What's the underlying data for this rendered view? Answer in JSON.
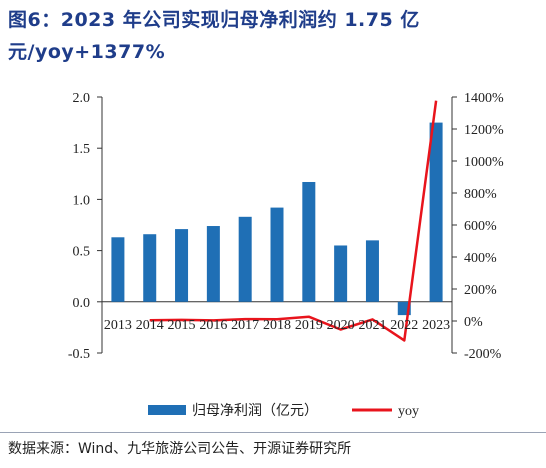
{
  "title": "图6：2023 年公司实现归母净利润约 1.75 亿元/yoy+1377%",
  "source": "数据来源：Wind、九华旅游公司公告、开源证券研究所",
  "chart_data": {
    "type": "bar+line",
    "categories": [
      "2013",
      "2014",
      "2015",
      "2016",
      "2017",
      "2018",
      "2019",
      "2020",
      "2021",
      "2022",
      "2023"
    ],
    "series": [
      {
        "name": "归母净利润（亿元）",
        "type": "bar",
        "axis": "left",
        "color": "#1f6fb5",
        "values": [
          0.63,
          0.66,
          0.71,
          0.74,
          0.83,
          0.92,
          1.17,
          0.55,
          0.6,
          -0.13,
          1.75
        ]
      },
      {
        "name": "yoy",
        "type": "line",
        "axis": "right",
        "color": "#e8141c",
        "values": [
          null,
          5,
          7,
          4,
          12,
          11,
          27,
          -53,
          10,
          -121,
          1377
        ]
      }
    ],
    "y_left": {
      "min": -0.5,
      "max": 2.0,
      "ticks": [
        "-0.5",
        "0.0",
        "0.5",
        "1.0",
        "1.5",
        "2.0"
      ]
    },
    "y_right": {
      "min": -200,
      "max": 1400,
      "ticks": [
        "-200%",
        "0%",
        "200%",
        "400%",
        "600%",
        "800%",
        "1000%",
        "1200%",
        "1400%"
      ]
    },
    "legend": {
      "position": "bottom"
    },
    "grid": false
  }
}
